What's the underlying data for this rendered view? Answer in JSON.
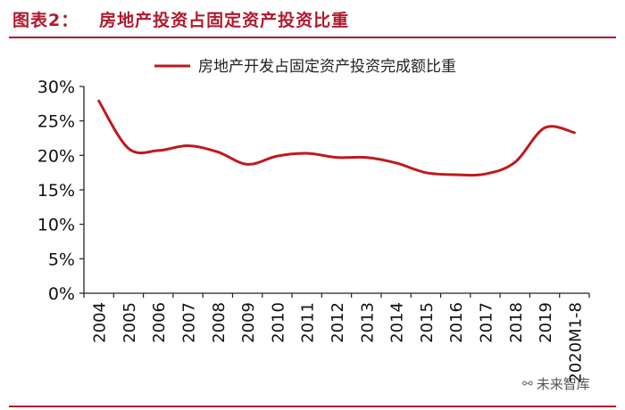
{
  "header": {
    "figure_title": "图表2：   房地产投资占固定资产投资比重"
  },
  "watermark": {
    "icon": "wechat-icon",
    "text": "未来智库"
  },
  "colors": {
    "accent": "#b0192c",
    "series": "#c0191f",
    "axis": "#222222"
  },
  "chart_data": {
    "type": "line",
    "title": "",
    "xlabel": "",
    "ylabel": "",
    "categories": [
      "2004",
      "2005",
      "2006",
      "2007",
      "2008",
      "2009",
      "2010",
      "2011",
      "2012",
      "2013",
      "2014",
      "2015",
      "2016",
      "2017",
      "2018",
      "2019",
      "2020M1-8"
    ],
    "series": [
      {
        "name": "房地产开发占固定资产投资完成额比重",
        "values": [
          27.9,
          21.0,
          20.7,
          21.4,
          20.5,
          18.7,
          19.9,
          20.3,
          19.7,
          19.7,
          18.9,
          17.5,
          17.2,
          17.3,
          19.0,
          24.0,
          23.3
        ]
      }
    ],
    "ylim": [
      0,
      30
    ],
    "yticks": [
      "0%",
      "5%",
      "10%",
      "15%",
      "20%",
      "25%",
      "30%"
    ],
    "grid": false,
    "legend": "top-right"
  }
}
